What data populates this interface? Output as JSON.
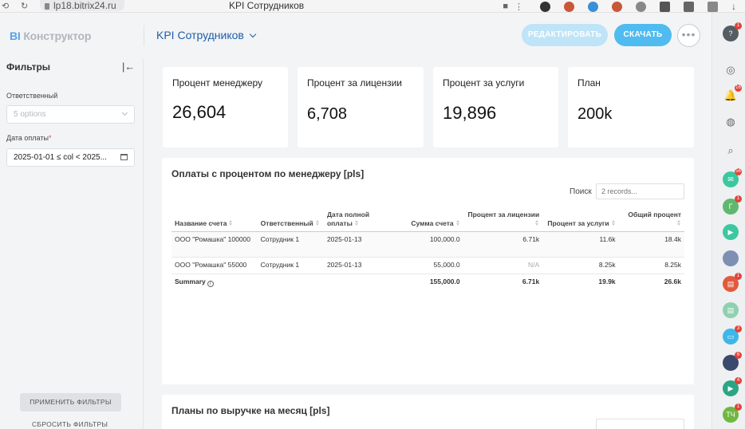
{
  "browser": {
    "url": "lp18.bitrix24.ru",
    "tab_title": "KPI Сотрудников"
  },
  "header": {
    "logo_prefix": "BI",
    "logo_text": "Конструктор",
    "report_title": "KPI Сотрудников",
    "edit_label": "РЕДАКТИРОВАТЬ",
    "download_label": "СКАЧАТЬ",
    "more_label": "•••"
  },
  "filters": {
    "title": "Фильтры",
    "responsible_label": "Ответственный",
    "responsible_placeholder": "5 options",
    "payment_date_label": "Дата оплаты",
    "payment_date_required": "*",
    "payment_date_value": "2025-01-01 ≤ col < 2025...",
    "apply_label": "ПРИМЕНИТЬ ФИЛЬТРЫ",
    "reset_label": "СБРОСИТЬ ФИЛЬТРЫ"
  },
  "kpis": [
    {
      "title": "Процент менеджеру",
      "value": "26,604"
    },
    {
      "title": "Процент за лицензии",
      "value": "6,708"
    },
    {
      "title": "Процент за услуги",
      "value": "19,896"
    },
    {
      "title": "План",
      "value": "200k"
    }
  ],
  "payments_table": {
    "title": "Оплаты с процентом по менеджеру [pls]",
    "search_label": "Поиск",
    "search_placeholder": "2 records...",
    "columns": [
      "Название счета",
      "Ответственный",
      "Дата полной оплаты",
      "Сумма счета",
      "Процент за лицензии",
      "Процент за услуги",
      "Общий процент"
    ],
    "rows": [
      [
        "ООО \"Ромашка\" 100000",
        "Сотрудник 1",
        "2025-01-13",
        "100,000.0",
        "6.71k",
        "11.6k",
        "18.4k"
      ],
      [
        "ООО \"Ромашка\" 55000",
        "Сотрудник 1",
        "2025-01-13",
        "55,000.0",
        "N/A",
        "8.25k",
        "8.25k"
      ]
    ],
    "summary_label": "Summary",
    "summary": [
      "155,000.0",
      "6.71k",
      "19.9k",
      "26.6k"
    ]
  },
  "plans_card": {
    "title": "Планы по выручке на месяц [pls]"
  },
  "rail": {
    "items": [
      {
        "name": "help-icon",
        "text": "?",
        "color": "#555c63",
        "badge": "1"
      },
      {
        "name": "copilot-icon",
        "text": "◎",
        "color": "",
        "badge": ""
      },
      {
        "name": "bell-icon",
        "text": "🔔",
        "color": "",
        "badge": "16"
      },
      {
        "name": "chat-icon",
        "text": "◍",
        "color": "",
        "badge": ""
      },
      {
        "name": "search-icon",
        "text": "⌕",
        "color": "",
        "badge": ""
      },
      {
        "name": "messenger-icon",
        "text": "✉",
        "color": "#3bc8a0",
        "badge": "56"
      },
      {
        "name": "group-g-icon",
        "text": "Г",
        "color": "#5fb86e",
        "badge": "1"
      },
      {
        "name": "video-icon",
        "text": "▶",
        "color": "#3bc8a0",
        "badge": ""
      },
      {
        "name": "user-avatar-icon",
        "text": "",
        "color": "#7d8fb3",
        "badge": ""
      },
      {
        "name": "contact-card-icon",
        "text": "▤",
        "color": "#e05a3c",
        "badge": "1"
      },
      {
        "name": "contact-card-2-icon",
        "text": "▤",
        "color": "#8fd0b0",
        "badge": ""
      },
      {
        "name": "feedback-icon",
        "text": "▭",
        "color": "#3db7e8",
        "badge": "3"
      },
      {
        "name": "user-avatar-2-icon",
        "text": "",
        "color": "#3a4a6b",
        "badge": "6"
      },
      {
        "name": "video-call-icon",
        "text": "▶",
        "color": "#2aa585",
        "badge": "4"
      },
      {
        "name": "user-tch-icon",
        "text": "ТЧ",
        "color": "#6fb83e",
        "badge": "1"
      }
    ]
  }
}
